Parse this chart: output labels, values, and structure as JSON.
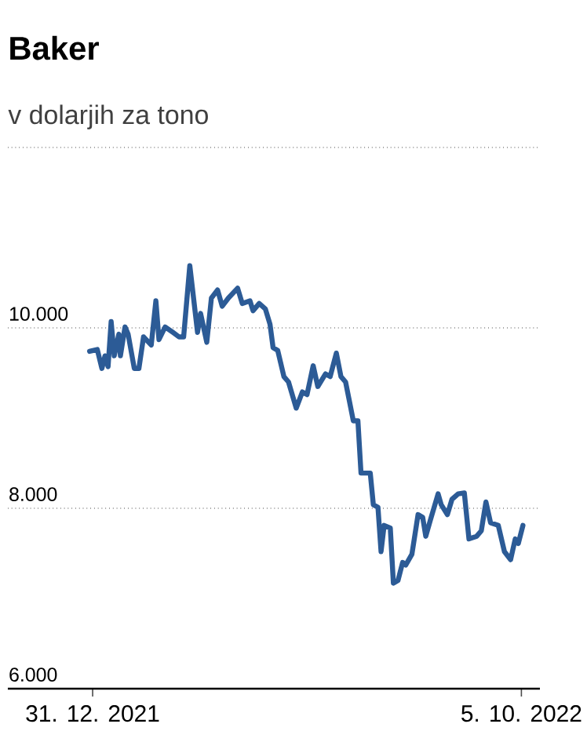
{
  "chart_data": {
    "type": "line",
    "title": "Baker",
    "subtitle": "v dolarjih za tono",
    "x": [
      "2021-12-29",
      "2022-01-03",
      "2022-01-06",
      "2022-01-08",
      "2022-01-10",
      "2022-01-12",
      "2022-01-14",
      "2022-01-17",
      "2022-01-18",
      "2022-01-21",
      "2022-01-23",
      "2022-01-27",
      "2022-01-30",
      "2022-02-02",
      "2022-02-07",
      "2022-02-10",
      "2022-02-12",
      "2022-02-16",
      "2022-02-21",
      "2022-02-25",
      "2022-02-28",
      "2022-03-04",
      "2022-03-09",
      "2022-03-11",
      "2022-03-15",
      "2022-03-18",
      "2022-03-22",
      "2022-03-25",
      "2022-03-29",
      "2022-04-04",
      "2022-04-07",
      "2022-04-12",
      "2022-04-14",
      "2022-04-18",
      "2022-04-22",
      "2022-04-25",
      "2022-04-27",
      "2022-04-30",
      "2022-05-04",
      "2022-05-07",
      "2022-05-12",
      "2022-05-16",
      "2022-05-19",
      "2022-05-23",
      "2022-05-26",
      "2022-05-31",
      "2022-06-03",
      "2022-06-07",
      "2022-06-10",
      "2022-06-13",
      "2022-06-15",
      "2022-06-18",
      "2022-06-21",
      "2022-06-23",
      "2022-06-29",
      "2022-07-01",
      "2022-07-04",
      "2022-07-06",
      "2022-07-08",
      "2022-07-12",
      "2022-07-14",
      "2022-07-17",
      "2022-07-20",
      "2022-07-22",
      "2022-07-26",
      "2022-07-30",
      "2022-08-02",
      "2022-08-04",
      "2022-08-07",
      "2022-08-12",
      "2022-08-14",
      "2022-08-18",
      "2022-08-21",
      "2022-08-25",
      "2022-08-29",
      "2022-09-01",
      "2022-09-06",
      "2022-09-09",
      "2022-09-12",
      "2022-09-15",
      "2022-09-20",
      "2022-09-24",
      "2022-09-28",
      "2022-10-01",
      "2022-10-03",
      "2022-10-06"
    ],
    "series": [
      {
        "color": "#2c5b96",
        "values": [
          9740,
          9760,
          9550,
          9690,
          9570,
          10070,
          9690,
          9930,
          9690,
          10010,
          9930,
          9550,
          9550,
          9900,
          9810,
          10300,
          9870,
          10010,
          9950,
          9900,
          9900,
          10690,
          9950,
          10160,
          9840,
          10330,
          10420,
          10240,
          10330,
          10440,
          10270,
          10300,
          10190,
          10270,
          10210,
          10040,
          9780,
          9750,
          9460,
          9400,
          9110,
          9290,
          9260,
          9580,
          9350,
          9490,
          9460,
          9720,
          9460,
          9400,
          9230,
          8970,
          8970,
          8390,
          8390,
          8040,
          8010,
          7520,
          7810,
          7780,
          7170,
          7200,
          7400,
          7370,
          7490,
          7930,
          7900,
          7690,
          7870,
          8160,
          8040,
          7930,
          8100,
          8160,
          8170,
          7660,
          7690,
          7750,
          8070,
          7840,
          7810,
          7520,
          7430,
          7660,
          7610,
          7810
        ]
      }
    ],
    "xlim": [
      "2021-11-06",
      "2022-10-17"
    ],
    "xticks": [
      {
        "value": "2021-12-31",
        "label": "31. 12. 2021"
      },
      {
        "value": "2022-10-05",
        "label": "5. 10. 2022"
      }
    ],
    "ylim": [
      6000,
      12000
    ],
    "yticks": [
      {
        "value": 6000,
        "label": "6.000"
      },
      {
        "value": 8000,
        "label": "8.000"
      },
      {
        "value": 10000,
        "label": "10.000"
      },
      {
        "value": 12000,
        "label": null
      }
    ],
    "grid": "y",
    "line_style": "solid",
    "marker": "none"
  }
}
